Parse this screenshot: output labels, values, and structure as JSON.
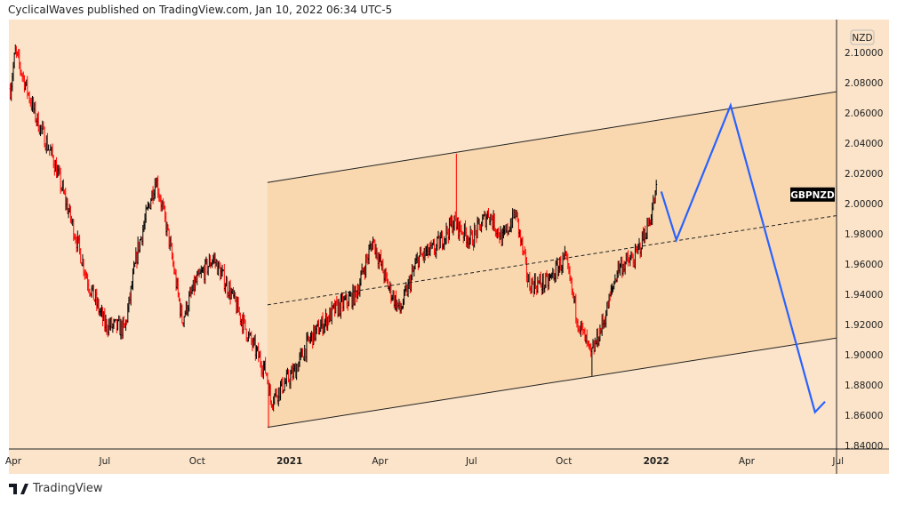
{
  "header": {
    "title": "CyclicalWaves published on TradingView.com, Jan 10, 2022 06:34 UTC-5"
  },
  "footer": {
    "brand": "TradingView"
  },
  "colors": {
    "background": "#fbe4c9",
    "channel_fill": "#f9d8b0",
    "up": "#000000",
    "down": "#ff0000",
    "projection": "#2962ff"
  },
  "chart_data": {
    "type": "candlestick",
    "symbol": "GBPNZD",
    "currency": "NZD",
    "x_unit": "days since 2020-04-01",
    "xlim": [
      -5,
      825
    ],
    "ylim": [
      1.835,
      2.11
    ],
    "yticks": [
      "2.10000",
      "2.08000",
      "2.06000",
      "2.04000",
      "2.02000",
      "2.00000",
      "1.98000",
      "1.96000",
      "1.94000",
      "1.92000",
      "1.90000",
      "1.88000",
      "1.86000",
      "1.84000"
    ],
    "xticks": [
      {
        "label": "Apr",
        "day": 0,
        "bold": false
      },
      {
        "label": "Jul",
        "day": 91,
        "bold": false
      },
      {
        "label": "Oct",
        "day": 183,
        "bold": false
      },
      {
        "label": "2021",
        "day": 275,
        "bold": true
      },
      {
        "label": "Apr",
        "day": 365,
        "bold": false
      },
      {
        "label": "Jul",
        "day": 456,
        "bold": false
      },
      {
        "label": "Oct",
        "day": 548,
        "bold": false
      },
      {
        "label": "2022",
        "day": 640,
        "bold": true
      },
      {
        "label": "Apr",
        "day": 730,
        "bold": false
      },
      {
        "label": "Jul",
        "day": 821,
        "bold": false
      }
    ],
    "price_path": [
      [
        -3,
        2.076
      ],
      [
        2,
        2.1
      ],
      [
        22,
        2.058
      ],
      [
        40,
        2.029
      ],
      [
        58,
        1.988
      ],
      [
        75,
        1.947
      ],
      [
        91,
        1.92
      ],
      [
        111,
        1.917
      ],
      [
        124,
        1.97
      ],
      [
        142,
        2.017
      ],
      [
        155,
        1.976
      ],
      [
        168,
        1.923
      ],
      [
        181,
        1.947
      ],
      [
        199,
        1.964
      ],
      [
        217,
        1.94
      ],
      [
        235,
        1.911
      ],
      [
        252,
        1.888
      ],
      [
        256,
        1.87
      ],
      [
        279,
        1.888
      ],
      [
        296,
        1.911
      ],
      [
        319,
        1.929
      ],
      [
        341,
        1.94
      ],
      [
        358,
        1.976
      ],
      [
        372,
        1.947
      ],
      [
        385,
        1.929
      ],
      [
        403,
        1.964
      ],
      [
        420,
        1.97
      ],
      [
        438,
        1.988
      ],
      [
        456,
        1.976
      ],
      [
        473,
        1.994
      ],
      [
        487,
        1.976
      ],
      [
        500,
        1.994
      ],
      [
        513,
        1.947
      ],
      [
        531,
        1.947
      ],
      [
        549,
        1.964
      ],
      [
        562,
        1.923
      ],
      [
        575,
        1.899
      ],
      [
        588,
        1.923
      ],
      [
        602,
        1.958
      ],
      [
        619,
        1.964
      ],
      [
        633,
        1.988
      ],
      [
        640,
        2.008
      ]
    ],
    "extremes": [
      {
        "day": 441,
        "high": 2.033
      },
      {
        "day": 254,
        "low": 1.852
      },
      {
        "day": 576,
        "low": 1.886
      }
    ],
    "last_label": "GBPNZD",
    "last_price": 2.006,
    "channel": {
      "upper": [
        [
          253,
          2.014
        ],
        [
          819,
          2.074
        ]
      ],
      "middle": [
        [
          253,
          1.933
        ],
        [
          819,
          1.992
        ]
      ],
      "lower": [
        [
          253,
          1.852
        ],
        [
          819,
          1.911
        ]
      ]
    },
    "projection": [
      [
        645,
        2.008
      ],
      [
        660,
        1.976
      ],
      [
        714,
        2.065
      ],
      [
        798,
        1.862
      ],
      [
        808,
        1.869
      ]
    ]
  }
}
